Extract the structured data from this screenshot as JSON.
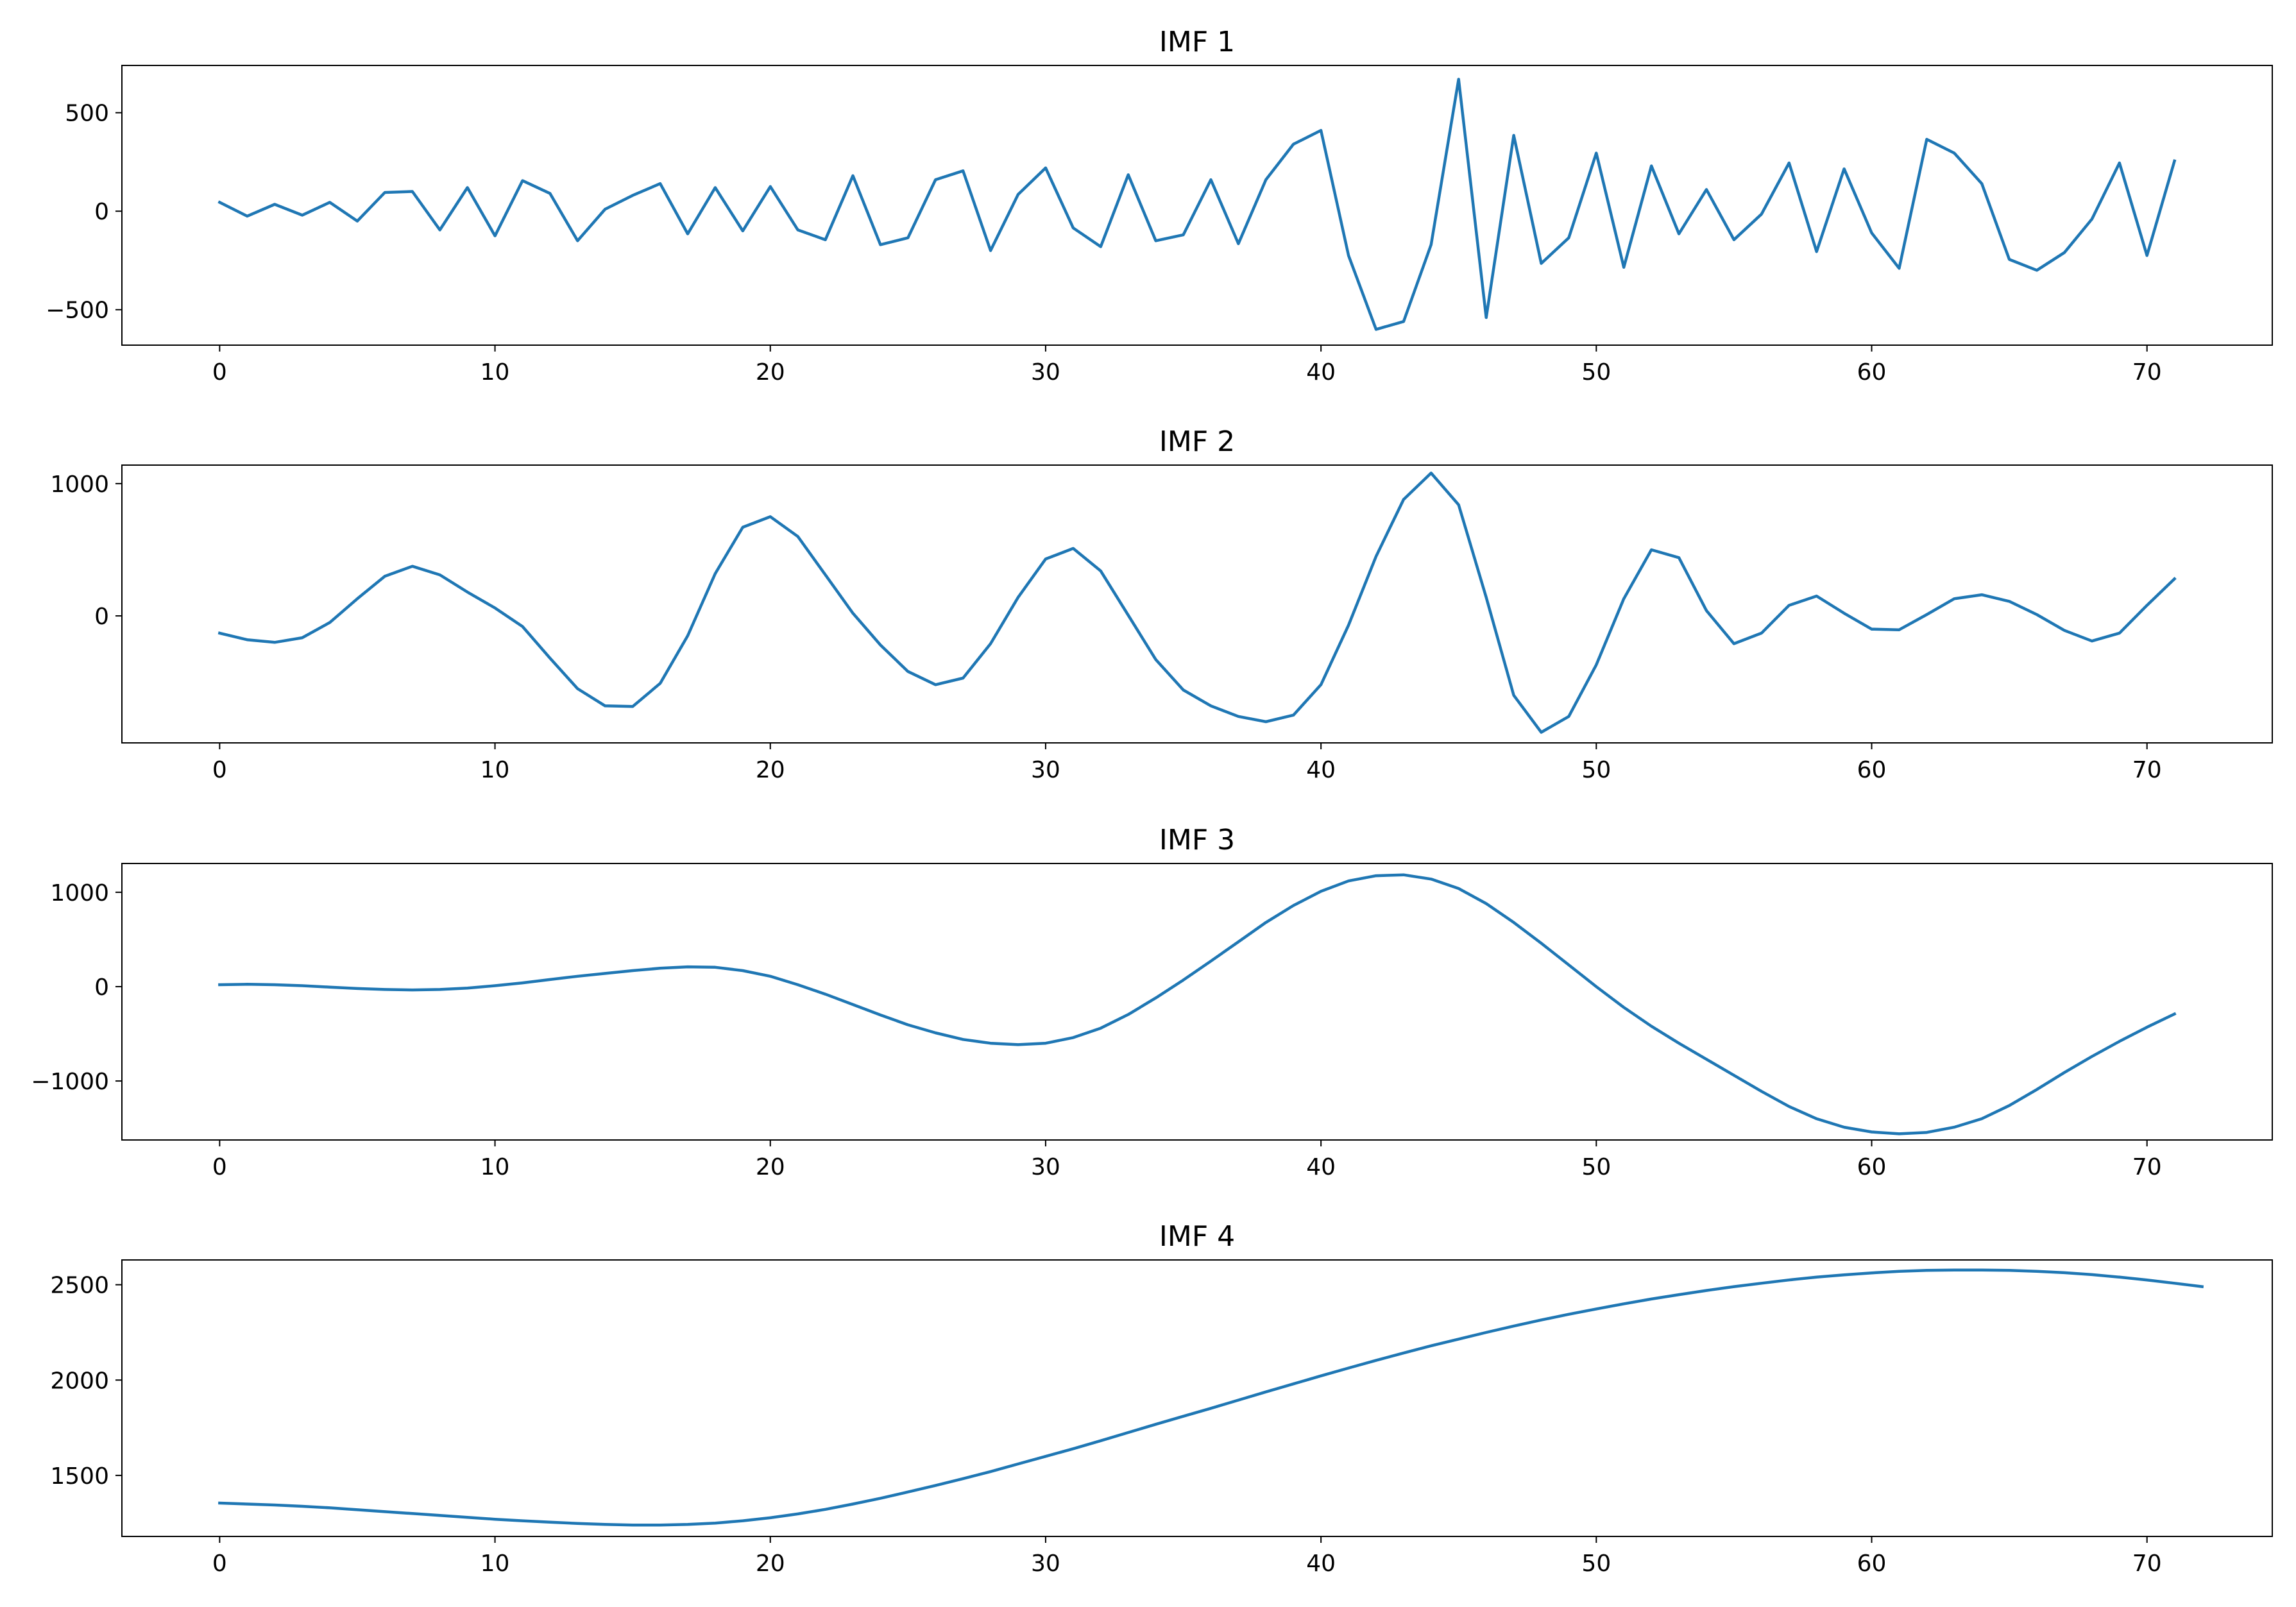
{
  "figure": {
    "background": "#ffffff",
    "line_color": "#1f77b4"
  },
  "chart_data": [
    {
      "type": "line",
      "title": "IMF 1",
      "xlabel": "",
      "ylabel": "",
      "xlim": [
        -3.55,
        74.55
      ],
      "ylim": [
        -680,
        740
      ],
      "xticks": [
        0,
        10,
        20,
        30,
        40,
        50,
        60,
        70
      ],
      "yticks": [
        -500,
        0,
        500
      ],
      "ytick_labels": [
        "−500",
        "0",
        "500"
      ],
      "grid": false,
      "series": [
        {
          "x_start": 0,
          "values": [
            45,
            -25,
            35,
            -20,
            45,
            -50,
            95,
            100,
            -95,
            120,
            -125,
            155,
            90,
            -150,
            10,
            80,
            140,
            -115,
            120,
            -100,
            125,
            -95,
            -145,
            180,
            -170,
            -135,
            160,
            205,
            -200,
            85,
            220,
            -85,
            -180,
            185,
            -150,
            -120,
            160,
            -165,
            160,
            340,
            410,
            -225,
            -600,
            -560,
            -170,
            670,
            -540,
            385,
            -265,
            -135,
            295,
            -285,
            230,
            -115,
            110,
            -145,
            -15,
            245,
            -205,
            215,
            -110,
            -290,
            365,
            295,
            140,
            -245,
            -300,
            -210,
            -40,
            245,
            -225,
            255
          ]
        }
      ]
    },
    {
      "type": "line",
      "title": "IMF 2",
      "xlabel": "",
      "ylabel": "",
      "xlim": [
        -3.55,
        74.55
      ],
      "ylim": [
        -960,
        1140
      ],
      "xticks": [
        0,
        10,
        20,
        30,
        40,
        50,
        60,
        70
      ],
      "yticks": [
        0,
        1000
      ],
      "ytick_labels": [
        "0",
        "1000"
      ],
      "grid": false,
      "series": [
        {
          "x_start": 0,
          "values": [
            -130,
            -180,
            -200,
            -165,
            -50,
            130,
            300,
            375,
            310,
            180,
            60,
            -80,
            -320,
            -550,
            -680,
            -685,
            -510,
            -150,
            320,
            670,
            750,
            600,
            310,
            20,
            -220,
            -420,
            -520,
            -470,
            -210,
            140,
            430,
            510,
            340,
            5,
            -330,
            -560,
            -680,
            -760,
            -800,
            -750,
            -520,
            -70,
            450,
            880,
            1080,
            840,
            140,
            -600,
            -880,
            -760,
            -370,
            130,
            500,
            440,
            40,
            -210,
            -130,
            80,
            150,
            20,
            -100,
            -105,
            10,
            130,
            160,
            110,
            10,
            -110,
            -190,
            -130,
            80,
            280
          ]
        }
      ]
    },
    {
      "type": "line",
      "title": "IMF 3",
      "xlabel": "",
      "ylabel": "",
      "xlim": [
        -3.55,
        74.55
      ],
      "ylim": [
        -1625,
        1305
      ],
      "xticks": [
        0,
        10,
        20,
        30,
        40,
        50,
        60,
        70
      ],
      "yticks": [
        -1000,
        0,
        1000
      ],
      "ytick_labels": [
        "−1000",
        "0",
        "1000"
      ],
      "grid": false,
      "series": [
        {
          "x_start": 0,
          "values": [
            20,
            25,
            20,
            10,
            -5,
            -20,
            -30,
            -35,
            -30,
            -15,
            10,
            40,
            75,
            110,
            140,
            170,
            195,
            210,
            205,
            170,
            110,
            20,
            -80,
            -190,
            -300,
            -405,
            -490,
            -560,
            -600,
            -615,
            -600,
            -540,
            -440,
            -295,
            -120,
            70,
            270,
            475,
            680,
            860,
            1010,
            1120,
            1175,
            1185,
            1140,
            1040,
            880,
            680,
            460,
            230,
            0,
            -220,
            -420,
            -600,
            -770,
            -940,
            -1110,
            -1270,
            -1400,
            -1490,
            -1540,
            -1560,
            -1545,
            -1490,
            -1400,
            -1260,
            -1090,
            -910,
            -740,
            -580,
            -430,
            -290
          ]
        }
      ]
    },
    {
      "type": "line",
      "title": "IMF 4",
      "xlabel": "",
      "ylabel": "",
      "xlim": [
        -3.55,
        74.55
      ],
      "ylim": [
        1180,
        2630
      ],
      "xticks": [
        0,
        10,
        20,
        30,
        40,
        50,
        60,
        70
      ],
      "yticks": [
        1500,
        2000,
        2500
      ],
      "ytick_labels": [
        "1500",
        "2000",
        "2500"
      ],
      "grid": false,
      "series": [
        {
          "x_start": 0,
          "values": [
            1355,
            1350,
            1345,
            1338,
            1330,
            1320,
            1310,
            1300,
            1290,
            1280,
            1270,
            1262,
            1255,
            1248,
            1243,
            1240,
            1240,
            1243,
            1250,
            1262,
            1278,
            1298,
            1322,
            1350,
            1380,
            1413,
            1447,
            1483,
            1520,
            1560,
            1600,
            1640,
            1682,
            1725,
            1768,
            1810,
            1852,
            1895,
            1938,
            1980,
            2022,
            2063,
            2103,
            2142,
            2180,
            2215,
            2250,
            2283,
            2315,
            2345,
            2373,
            2400,
            2425,
            2448,
            2470,
            2490,
            2508,
            2525,
            2540,
            2552,
            2562,
            2570,
            2575,
            2577,
            2577,
            2575,
            2570,
            2563,
            2553,
            2540,
            2525,
            2508,
            2490
          ]
        }
      ]
    }
  ]
}
